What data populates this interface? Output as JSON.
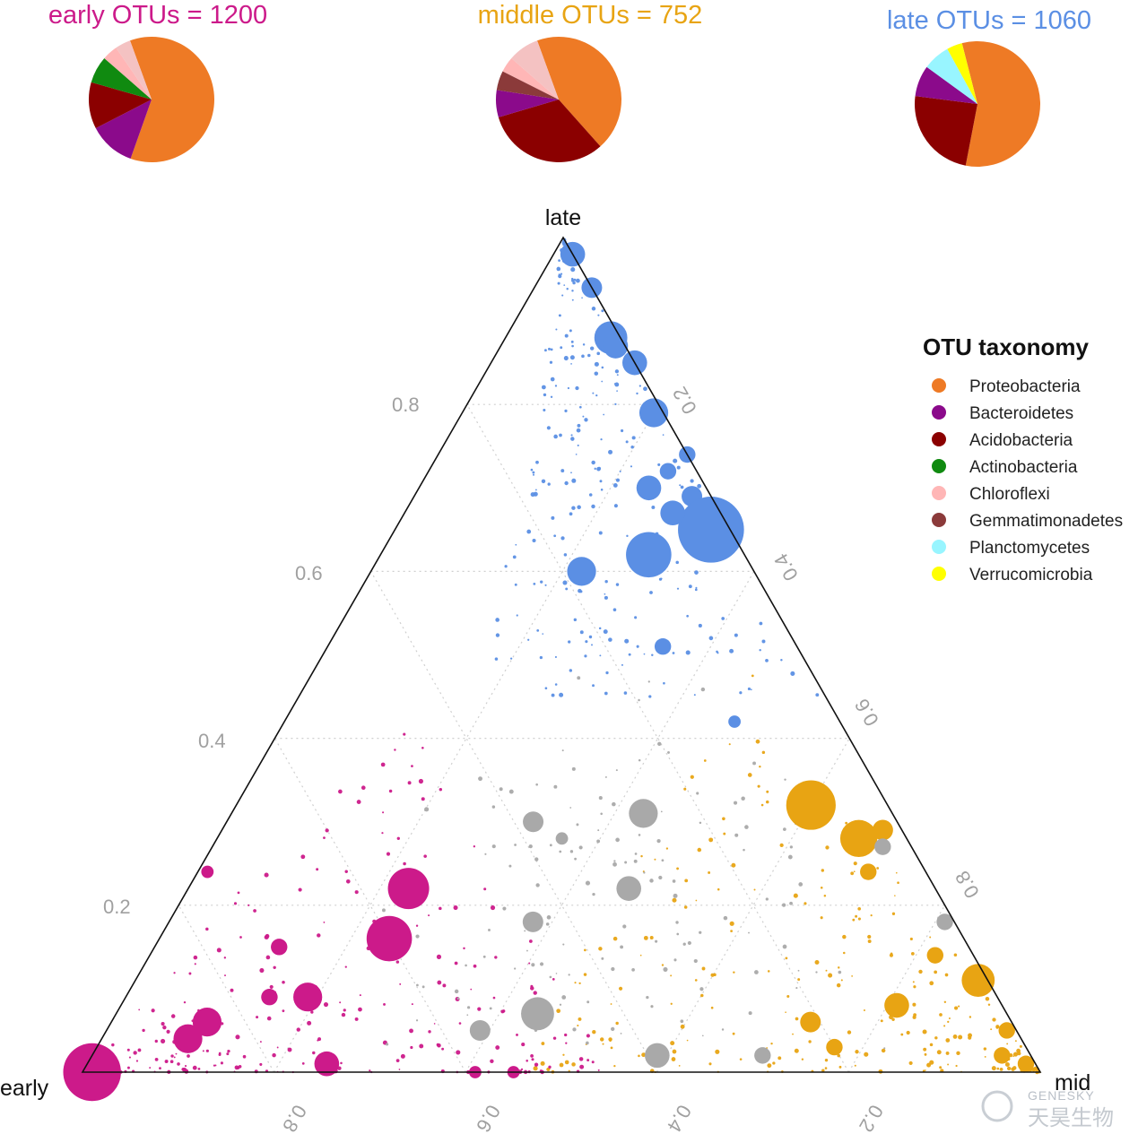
{
  "pies": [
    {
      "title": "early OTUs = 1200",
      "color": "#cc1a8a",
      "slices": [
        {
          "taxon": "Proteobacteria",
          "value": 0.61
        },
        {
          "taxon": "Bacteroidetes",
          "value": 0.12
        },
        {
          "taxon": "Acidobacteria",
          "value": 0.12
        },
        {
          "taxon": "Actinobacteria",
          "value": 0.07
        },
        {
          "taxon": "Chloroflexi",
          "value": 0.04
        },
        {
          "taxon": "Other",
          "value": 0.04
        }
      ]
    },
    {
      "title": "middle OTUs = 752",
      "color": "#e8a413",
      "slices": [
        {
          "taxon": "Proteobacteria",
          "value": 0.44
        },
        {
          "taxon": "Acidobacteria",
          "value": 0.32
        },
        {
          "taxon": "Bacteroidetes",
          "value": 0.07
        },
        {
          "taxon": "Gemmatimonadetes",
          "value": 0.05
        },
        {
          "taxon": "Chloroflexi",
          "value": 0.04
        },
        {
          "taxon": "Other",
          "value": 0.08
        }
      ]
    },
    {
      "title": "late  OTUs = 1060",
      "color": "#5b8fe4",
      "slices": [
        {
          "taxon": "Proteobacteria",
          "value": 0.57
        },
        {
          "taxon": "Acidobacteria",
          "value": 0.24
        },
        {
          "taxon": "Bacteroidetes",
          "value": 0.08
        },
        {
          "taxon": "Planctomycetes",
          "value": 0.07
        },
        {
          "taxon": "Verrucomicrobia",
          "value": 0.04
        }
      ]
    }
  ],
  "ternary": {
    "vertex_labels": {
      "top": "late",
      "left": "early",
      "right": "mid"
    },
    "left_ticks": [
      "0.2",
      "0.4",
      "0.6",
      "0.8"
    ],
    "right_ticks": [
      "0.2",
      "0.4",
      "0.6",
      "0.8"
    ],
    "bottom_ticks": [
      "0.8",
      "0.6",
      "0.4",
      "0.2"
    ]
  },
  "legend": {
    "title": "OTU taxonomy",
    "items": [
      {
        "label": "Proteobacteria",
        "color": "#ee7a25"
      },
      {
        "label": "Bacteroidetes",
        "color": "#8b0a8b"
      },
      {
        "label": "Acidobacteria",
        "color": "#8b0000"
      },
      {
        "label": "Actinobacteria",
        "color": "#108a10"
      },
      {
        "label": "Chloroflexi",
        "color": "#ffb6b6"
      },
      {
        "label": "Gemmatimonadetes",
        "color": "#8b3a3a"
      },
      {
        "label": "Planctomycetes",
        "color": "#98f5ff"
      },
      {
        "label": "Verrucomicrobia",
        "color": "#ffff00"
      }
    ]
  },
  "colors": {
    "early": "#cc1a8a",
    "middle": "#e8a413",
    "late": "#5b8fe4",
    "nonsignificant": "#a9a9a9",
    "Proteobacteria": "#ee7a25",
    "Bacteroidetes": "#8b0a8b",
    "Acidobacteria": "#8b0000",
    "Actinobacteria": "#108a10",
    "Chloroflexi": "#ffb6b6",
    "Gemmatimonadetes": "#8b3a3a",
    "Planctomycetes": "#98f5ff",
    "Verrucomicrobia": "#ffff00",
    "Other": "#f4c2c2"
  },
  "watermark": {
    "top": "GENESKY",
    "bottom": "天昊生物"
  },
  "chart_data": {
    "type": "scatter",
    "subtype": "ternary",
    "axes": [
      "early",
      "mid",
      "late"
    ],
    "grid": true,
    "series": [
      {
        "name": "late",
        "points": [
          {
            "early": 0.0,
            "mid": 0.02,
            "late": 0.98,
            "size": 6
          },
          {
            "early": 0.0,
            "mid": 0.06,
            "late": 0.94,
            "size": 5
          },
          {
            "early": 0.01,
            "mid": 0.11,
            "late": 0.88,
            "size": 8
          },
          {
            "early": 0.01,
            "mid": 0.12,
            "late": 0.87,
            "size": 6
          },
          {
            "early": 0.0,
            "mid": 0.15,
            "late": 0.85,
            "size": 6
          },
          {
            "early": 0.01,
            "mid": 0.2,
            "late": 0.79,
            "size": 7
          },
          {
            "early": 0.0,
            "mid": 0.26,
            "late": 0.74,
            "size": 4
          },
          {
            "early": 0.03,
            "mid": 0.25,
            "late": 0.72,
            "size": 4
          },
          {
            "early": 0.02,
            "mid": 0.29,
            "late": 0.69,
            "size": 5
          },
          {
            "early": 0.02,
            "mid": 0.33,
            "late": 0.65,
            "size": 16
          },
          {
            "early": 0.05,
            "mid": 0.28,
            "late": 0.67,
            "size": 6
          },
          {
            "early": 0.1,
            "mid": 0.28,
            "late": 0.62,
            "size": 11
          },
          {
            "early": 0.06,
            "mid": 0.24,
            "late": 0.7,
            "size": 6
          },
          {
            "early": 0.18,
            "mid": 0.22,
            "late": 0.6,
            "size": 7
          },
          {
            "early": 0.14,
            "mid": 0.35,
            "late": 0.51,
            "size": 4
          },
          {
            "early": 0.11,
            "mid": 0.47,
            "late": 0.42,
            "size": 3
          }
        ]
      },
      {
        "name": "middle",
        "points": [
          {
            "early": 0.08,
            "mid": 0.6,
            "late": 0.32,
            "size": 12
          },
          {
            "early": 0.05,
            "mid": 0.67,
            "late": 0.28,
            "size": 9
          },
          {
            "early": 0.01,
            "mid": 0.88,
            "late": 0.11,
            "size": 8
          },
          {
            "early": 0.11,
            "mid": 0.81,
            "late": 0.08,
            "size": 6
          },
          {
            "early": 0.04,
            "mid": 0.82,
            "late": 0.14,
            "size": 4
          },
          {
            "early": 0.01,
            "mid": 0.94,
            "late": 0.05,
            "size": 4
          },
          {
            "early": 0.03,
            "mid": 0.95,
            "late": 0.02,
            "size": 4
          },
          {
            "early": 0.01,
            "mid": 0.98,
            "late": 0.01,
            "size": 4
          },
          {
            "early": 0.21,
            "mid": 0.73,
            "late": 0.06,
            "size": 5
          },
          {
            "early": 0.06,
            "mid": 0.7,
            "late": 0.24,
            "size": 4
          },
          {
            "early": 0.02,
            "mid": 0.69,
            "late": 0.29,
            "size": 5
          },
          {
            "early": 0.2,
            "mid": 0.77,
            "late": 0.03,
            "size": 4
          }
        ]
      },
      {
        "name": "early",
        "points": [
          {
            "early": 0.99,
            "mid": 0.01,
            "late": 0.0,
            "size": 14
          },
          {
            "early": 0.55,
            "mid": 0.23,
            "late": 0.22,
            "size": 10
          },
          {
            "early": 0.6,
            "mid": 0.24,
            "late": 0.16,
            "size": 11
          },
          {
            "early": 0.72,
            "mid": 0.19,
            "late": 0.09,
            "size": 7
          },
          {
            "early": 0.84,
            "mid": 0.1,
            "late": 0.06,
            "size": 7
          },
          {
            "early": 0.87,
            "mid": 0.09,
            "late": 0.04,
            "size": 7
          },
          {
            "early": 0.74,
            "mid": 0.25,
            "late": 0.01,
            "size": 6
          },
          {
            "early": 0.59,
            "mid": 0.41,
            "late": 0.0,
            "size": 3
          },
          {
            "early": 0.55,
            "mid": 0.45,
            "late": 0.0,
            "size": 3
          },
          {
            "early": 0.76,
            "mid": 0.15,
            "late": 0.09,
            "size": 4
          },
          {
            "early": 0.72,
            "mid": 0.13,
            "late": 0.15,
            "size": 4
          },
          {
            "early": 0.75,
            "mid": 0.01,
            "late": 0.24,
            "size": 3
          }
        ]
      },
      {
        "name": "nonsignificant",
        "points": [
          {
            "early": 0.26,
            "mid": 0.43,
            "late": 0.31,
            "size": 7
          },
          {
            "early": 0.38,
            "mid": 0.32,
            "late": 0.3,
            "size": 5
          },
          {
            "early": 0.32,
            "mid": 0.46,
            "late": 0.22,
            "size": 6
          },
          {
            "early": 0.44,
            "mid": 0.38,
            "late": 0.18,
            "size": 5
          },
          {
            "early": 0.49,
            "mid": 0.44,
            "late": 0.07,
            "size": 8
          },
          {
            "early": 0.39,
            "mid": 0.59,
            "late": 0.02,
            "size": 6
          },
          {
            "early": 0.28,
            "mid": 0.7,
            "late": 0.02,
            "size": 4
          },
          {
            "early": 0.01,
            "mid": 0.81,
            "late": 0.18,
            "size": 4
          },
          {
            "early": 0.03,
            "mid": 0.7,
            "late": 0.27,
            "size": 4
          },
          {
            "early": 0.56,
            "mid": 0.39,
            "late": 0.05,
            "size": 5
          },
          {
            "early": 0.36,
            "mid": 0.36,
            "late": 0.28,
            "size": 3
          }
        ]
      }
    ]
  }
}
